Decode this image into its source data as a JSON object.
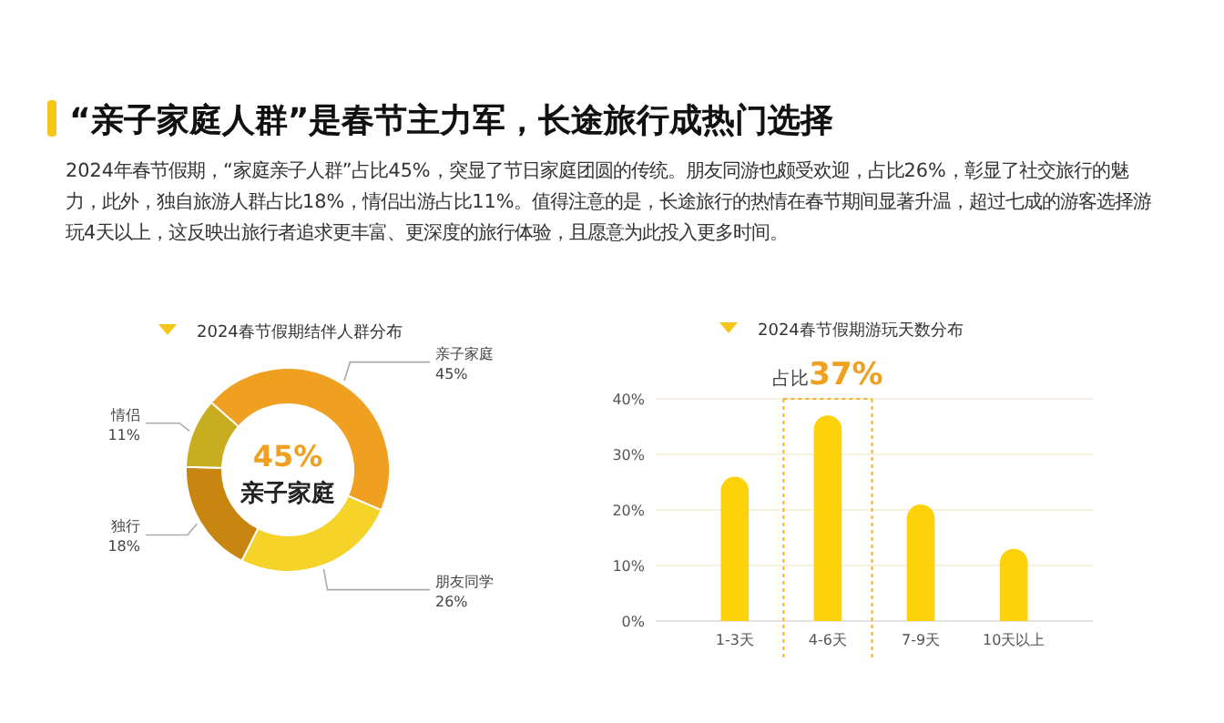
{
  "chart_data": [
    {
      "type": "donut",
      "title": "“亲子家庭人群”是春节主力军，长途旅行成热门选择",
      "subtitle": "2024年春节假期，“家庭亲子人群”占比45%，突显了节日家庭团圆的传统。朋友同游也颇受欢迎，占比26%，彰显了社交旅行的魅力，此外，独自旅游人群占比18%，情侣出游占比11%。值得注意的是，长途旅行的热情在春节期间显著升温，超过七成的游客选择游玩4天以上，这反映出旅行者追求更丰富、更深度的旅行体验，且愿意为此投入更多时间。",
      "legend_title": "2024春节假期结伴人群分布",
      "categories": [
        "亲子家庭",
        "朋友同学",
        "独行",
        "情侣"
      ],
      "values": [
        45,
        26,
        18,
        11
      ],
      "colors": [
        "#f0a020",
        "#f5d328",
        "#c8850f",
        "#c9ad20"
      ],
      "value_labels": [
        "45%",
        "26%",
        "18%",
        "11%"
      ],
      "annotations": [
        "45%",
        "亲子家庭"
      ]
    },
    {
      "type": "bar",
      "legend_title": "2024春节假期游玩天数分布",
      "categories": [
        "1-3天",
        "4-6天",
        "7-9天",
        "10天以上"
      ],
      "values": [
        26,
        37,
        21,
        13
      ],
      "color": "#fdd20a",
      "ylim": [
        0,
        40
      ],
      "yticks": [
        {
          "value": 0,
          "label": "0%"
        },
        {
          "value": 10,
          "label": "10%"
        },
        {
          "value": 20,
          "label": "20%"
        },
        {
          "value": 30,
          "label": "30%"
        },
        {
          "value": 40,
          "label": "40%"
        }
      ],
      "grid": "y",
      "annotations": [
        "占比37%"
      ]
    }
  ]
}
